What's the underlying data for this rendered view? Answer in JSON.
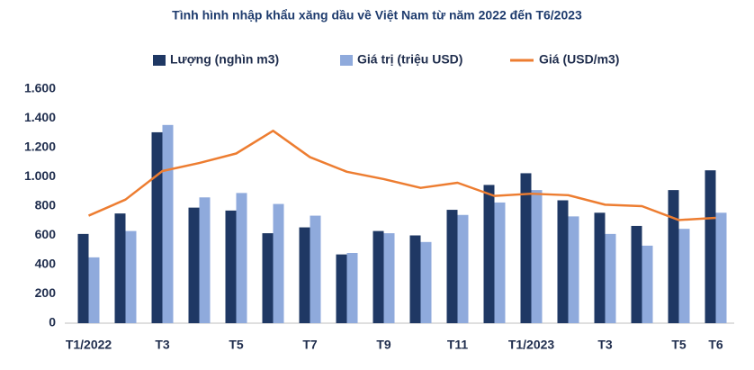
{
  "chart_data": {
    "type": "bar_line",
    "title": "Tình hình nhập khẩu xăng dầu về Việt Nam từ năm 2022 đến T6/2023",
    "categories": [
      "T1/2022",
      null,
      "T3",
      null,
      "T5",
      null,
      "T7",
      null,
      "T9",
      null,
      "T11",
      null,
      "T1/2023",
      null,
      "T3",
      null,
      "T5",
      "T6"
    ],
    "series": [
      {
        "name": "Lượng (nghìn m3)",
        "color": "#1f3864",
        "kind": "bar",
        "values": [
          610,
          750,
          1305,
          790,
          770,
          615,
          655,
          470,
          630,
          600,
          775,
          945,
          1025,
          840,
          755,
          665,
          910,
          1045
        ]
      },
      {
        "name": "Giá trị (triệu USD)",
        "color": "#8faadc",
        "kind": "bar",
        "values": [
          450,
          630,
          1355,
          860,
          890,
          815,
          735,
          480,
          615,
          555,
          740,
          825,
          910,
          730,
          610,
          530,
          645,
          755
        ]
      },
      {
        "name": "Giá (USD/m3)",
        "color": "#ed7d31",
        "kind": "line",
        "values": [
          735,
          845,
          1040,
          1095,
          1160,
          1315,
          1135,
          1035,
          985,
          925,
          960,
          870,
          885,
          875,
          810,
          800,
          705,
          720
        ]
      }
    ],
    "ylim": [
      0,
      1600
    ],
    "yticks": [
      0,
      200,
      400,
      600,
      800,
      {
        "value": 1000,
        "label": "1.000"
      },
      {
        "value": 1200,
        "label": "1.200"
      },
      {
        "value": 1400,
        "label": "1.400"
      },
      {
        "value": 1600,
        "label": "1.600"
      }
    ],
    "grid": false,
    "legend": "top"
  }
}
